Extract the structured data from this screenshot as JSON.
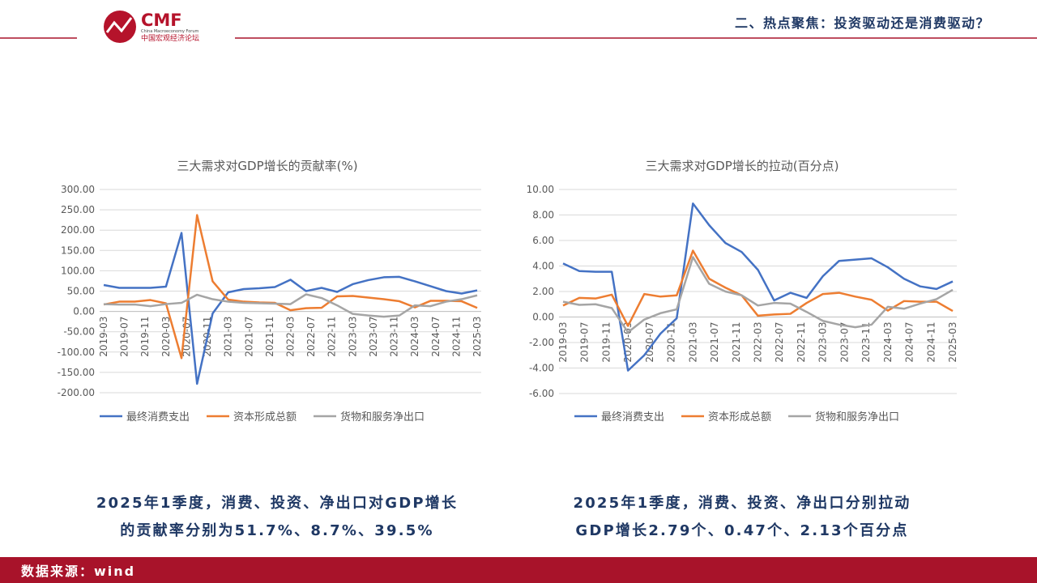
{
  "header": {
    "logo": "CMF",
    "logo_sub": "China Macroeconomy Forum",
    "logo_cn": "中国宏观经济论坛",
    "title": "二、热点聚焦：投资驱动还是消费驱动？"
  },
  "chart_data": [
    {
      "type": "line",
      "title": "三大需求对GDP增长的贡献率(%)",
      "x": [
        "2019-03",
        "2019-06",
        "2019-09",
        "2019-12",
        "2020-03",
        "2020-06",
        "2020-09",
        "2020-12",
        "2021-03",
        "2021-06",
        "2021-09",
        "2021-12",
        "2022-03",
        "2022-06",
        "2022-09",
        "2022-12",
        "2023-03",
        "2023-06",
        "2023-09",
        "2023-12",
        "2024-03",
        "2024-06",
        "2024-09",
        "2024-12",
        "2025-03"
      ],
      "xlim": [
        "2019-03",
        "2025-03"
      ],
      "xticks": [
        "2019-03",
        "2019-07",
        "2019-11",
        "2020-03",
        "2020-07",
        "2020-11",
        "2021-03",
        "2021-07",
        "2021-11",
        "2022-03",
        "2022-07",
        "2022-11",
        "2023-03",
        "2023-07",
        "2023-11",
        "2024-03",
        "2024-07",
        "2024-11",
        "2025-03"
      ],
      "ylim": [
        -200,
        300
      ],
      "yticks": [
        {
          "value": -200,
          "label": "-200.00"
        },
        {
          "value": -150,
          "label": "-150.00"
        },
        {
          "value": -100,
          "label": "-100.00"
        },
        {
          "value": -50,
          "label": "-50.00"
        },
        {
          "value": 0,
          "label": "0.00"
        },
        {
          "value": 50,
          "label": "50.00"
        },
        {
          "value": 100,
          "label": "100.00"
        },
        {
          "value": 150,
          "label": "150.00"
        },
        {
          "value": 200,
          "label": "200.00"
        },
        {
          "value": 250,
          "label": "250.00"
        },
        {
          "value": 300,
          "label": "300.00"
        }
      ],
      "grid": true,
      "legend": "bottom",
      "series": [
        {
          "name": "最终消费支出",
          "color": "#4472c4",
          "values": [
            65,
            58,
            58,
            58,
            61,
            193,
            -178,
            -5,
            47,
            55,
            57,
            60,
            78,
            50,
            58,
            48,
            67,
            77,
            84,
            85,
            74,
            62,
            50,
            44,
            51.7
          ]
        },
        {
          "name": "资本形成总额",
          "color": "#ed7d31",
          "values": [
            17,
            24,
            24,
            28,
            20,
            -115,
            237,
            74,
            29,
            24,
            22,
            21,
            3,
            8,
            9,
            37,
            38,
            34,
            30,
            25,
            10,
            26,
            26,
            25,
            8.7
          ]
        },
        {
          "name": "货物和服务净出口",
          "color": "#a5a5a5",
          "values": [
            18,
            17,
            17,
            13,
            18,
            21,
            41,
            30,
            24,
            21,
            20,
            19,
            18,
            42,
            33,
            15,
            -6,
            -10,
            -13,
            -10,
            15,
            13,
            24,
            30,
            39.5
          ]
        }
      ]
    },
    {
      "type": "line",
      "title": "三大需求对GDP增长的拉动(百分点)",
      "x": [
        "2019-03",
        "2019-06",
        "2019-09",
        "2019-12",
        "2020-03",
        "2020-06",
        "2020-09",
        "2020-12",
        "2021-03",
        "2021-06",
        "2021-09",
        "2021-12",
        "2022-03",
        "2022-06",
        "2022-09",
        "2022-12",
        "2023-03",
        "2023-06",
        "2023-09",
        "2023-12",
        "2024-03",
        "2024-06",
        "2024-09",
        "2024-12",
        "2025-03"
      ],
      "xlim": [
        "2019-03",
        "2025-03"
      ],
      "xticks": [
        "2019-03",
        "2019-07",
        "2019-11",
        "2020-03",
        "2020-07",
        "2020-11",
        "2021-03",
        "2021-07",
        "2021-11",
        "2022-03",
        "2022-07",
        "2022-11",
        "2023-03",
        "2023-07",
        "2023-11",
        "2024-03",
        "2024-07",
        "2024-11",
        "2025-03"
      ],
      "ylim": [
        -6,
        10
      ],
      "yticks": [
        {
          "value": -6,
          "label": "-6.00"
        },
        {
          "value": -4,
          "label": "-4.00"
        },
        {
          "value": -2,
          "label": "-2.00"
        },
        {
          "value": 0,
          "label": "0.00"
        },
        {
          "value": 2,
          "label": "2.00"
        },
        {
          "value": 4,
          "label": "4.00"
        },
        {
          "value": 6,
          "label": "6.00"
        },
        {
          "value": 8,
          "label": "8.00"
        },
        {
          "value": 10,
          "label": "10.00"
        }
      ],
      "grid": true,
      "legend": "bottom",
      "series": [
        {
          "name": "最终消费支出",
          "color": "#4472c4",
          "values": [
            4.2,
            3.6,
            3.55,
            3.55,
            -4.2,
            -3.0,
            -1.3,
            -0.1,
            8.9,
            7.2,
            5.8,
            5.1,
            3.7,
            1.3,
            1.9,
            1.5,
            3.2,
            4.4,
            4.5,
            4.6,
            3.9,
            3.0,
            2.4,
            2.2,
            2.79
          ]
        },
        {
          "name": "资本形成总额",
          "color": "#ed7d31",
          "values": [
            0.9,
            1.5,
            1.45,
            1.75,
            -0.7,
            1.8,
            1.6,
            1.7,
            5.2,
            3.0,
            2.3,
            1.7,
            0.1,
            0.2,
            0.25,
            1.1,
            1.8,
            1.9,
            1.6,
            1.35,
            0.5,
            1.25,
            1.2,
            1.2,
            0.47
          ]
        },
        {
          "name": "货物和服务净出口",
          "color": "#a5a5a5",
          "values": [
            1.2,
            0.95,
            1.0,
            0.7,
            -1.2,
            -0.2,
            0.3,
            0.6,
            4.7,
            2.6,
            2.0,
            1.7,
            0.9,
            1.1,
            1.05,
            0.4,
            -0.3,
            -0.6,
            -0.8,
            -0.6,
            0.8,
            0.65,
            1.05,
            1.4,
            2.13
          ]
        }
      ]
    }
  ],
  "captions": [
    [
      "2025年1季度，消费、投资、净出口对GDP增长",
      "的贡献率分别为51.7%、8.7%、39.5%"
    ],
    [
      "2025年1季度，消费、投资、净出口分别拉动",
      "GDP增长2.79个、0.47个、2.13个百分点"
    ]
  ],
  "footer": "数据来源：wind"
}
